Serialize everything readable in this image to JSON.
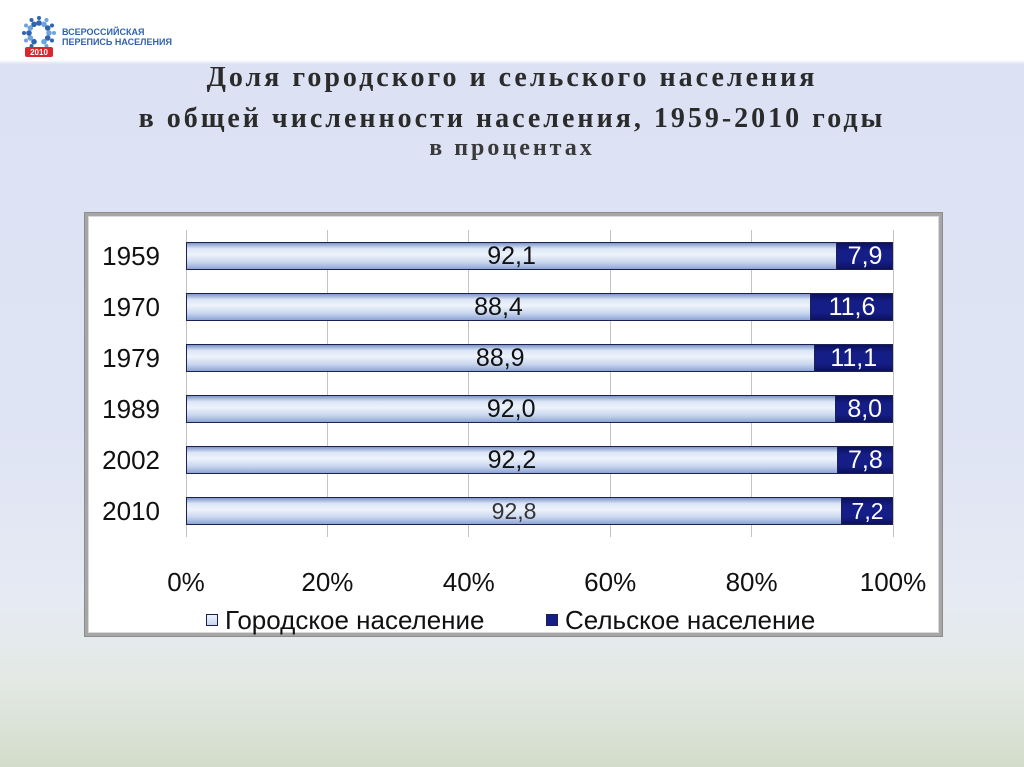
{
  "logo": {
    "icon": "census-logo-icon",
    "line1": "ВСЕРОССИЙСКАЯ",
    "line2": "ПЕРЕПИСЬ НАСЕЛЕНИЯ",
    "badge": "2010"
  },
  "colors": {
    "urban": "#c7d5ee",
    "rural": "#151d86",
    "bar_outline": "#1d2152",
    "logo_blue": "#2f63ad",
    "logo_light": "#6fa3dc",
    "logo_red": "#d9272e"
  },
  "chart_data": {
    "type": "bar",
    "orientation": "horizontal",
    "stacked": true,
    "title": [
      "Доля городского и сельского населения",
      "в общей численности населения, 1959-2010 годы"
    ],
    "subtitle": "в процентах",
    "categories": [
      "1959",
      "1970",
      "1979",
      "1989",
      "2002",
      "2010"
    ],
    "series": [
      {
        "name": "Городское население",
        "values": [
          92.1,
          88.4,
          88.9,
          92.0,
          92.2,
          92.8
        ],
        "data_labels": [
          "92,1",
          "88,4",
          "88,9",
          "92,0",
          "92,2",
          "92,8"
        ]
      },
      {
        "name": "Сельское население",
        "values": [
          7.9,
          11.6,
          11.1,
          8.0,
          7.8,
          7.2
        ],
        "data_labels": [
          "7,9",
          "11,6",
          "11,1",
          "8,0",
          "7,8",
          "7,2"
        ]
      }
    ],
    "xticks": [
      {
        "value": 0,
        "label": "0%"
      },
      {
        "value": 20,
        "label": "20%"
      },
      {
        "value": 40,
        "label": "40%"
      },
      {
        "value": 60,
        "label": "60%"
      },
      {
        "value": 80,
        "label": "80%"
      },
      {
        "value": 100,
        "label": "100%"
      }
    ],
    "xlim": [
      0,
      100
    ],
    "grid": true,
    "legend": "bottom"
  }
}
